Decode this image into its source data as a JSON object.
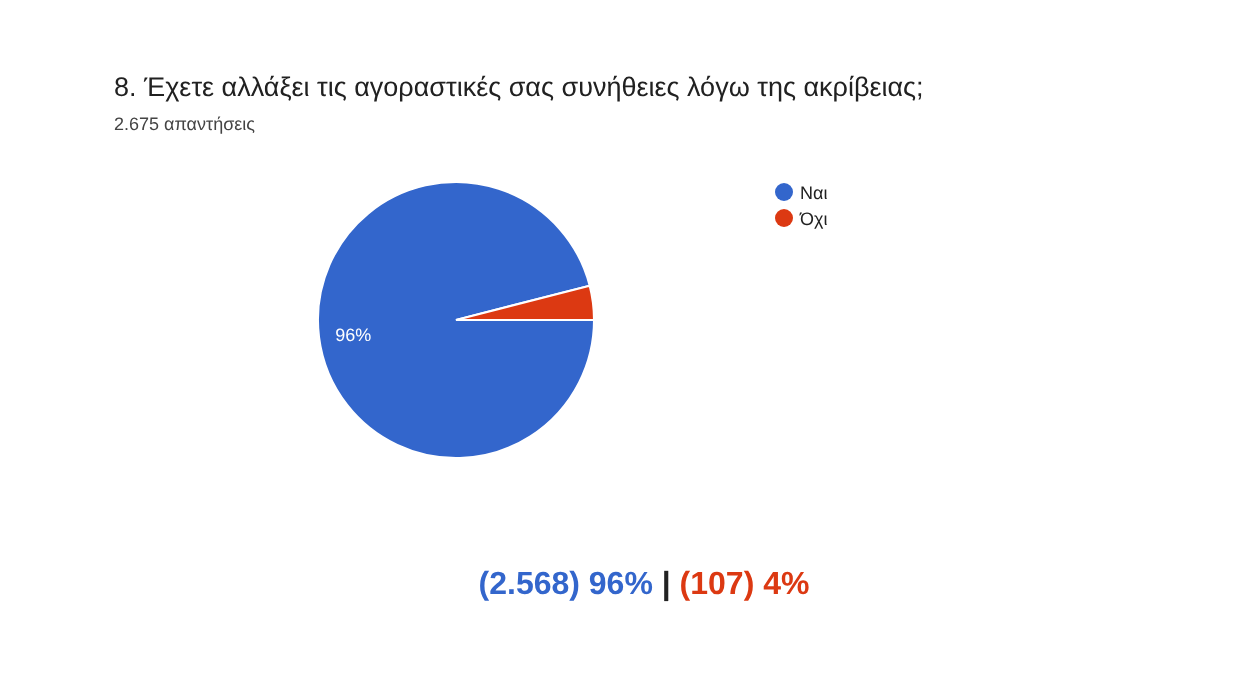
{
  "chart_data": {
    "type": "pie",
    "title": "8. Έχετε αλλάξει τις αγοραστικές σας συνήθειες λόγω της ακρίβειας;",
    "subtitle": "2.675 απαντήσεις",
    "categories": [
      "Ναι",
      "Όχι"
    ],
    "values": [
      96,
      4
    ],
    "colors": [
      "#3366cc",
      "#dc3912"
    ],
    "value_labels": [
      "96%",
      null
    ],
    "legend": "right",
    "annotations": [
      "(2.568) 96%",
      "|",
      "(107) 4%"
    ]
  }
}
